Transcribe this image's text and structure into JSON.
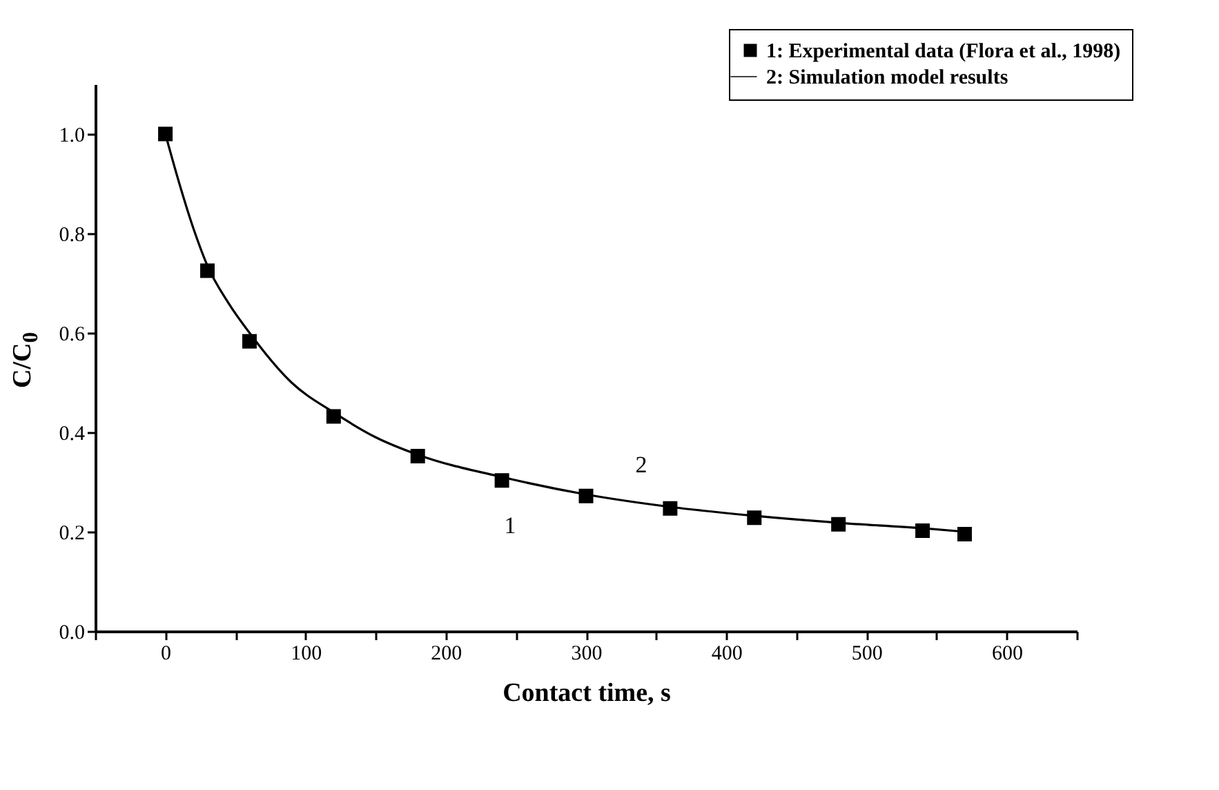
{
  "chart_data": {
    "type": "scatter",
    "xlabel": "Contact time, s",
    "ylabel": "C/C$_{0}$",
    "xlim": [
      -50,
      650
    ],
    "ylim": [
      0,
      1.1
    ],
    "xticks": [
      {
        "value": -50,
        "label": null
      },
      0,
      {
        "value": 50,
        "label": null
      },
      100,
      {
        "value": 150,
        "label": null
      },
      200,
      {
        "value": 250,
        "label": null
      },
      300,
      {
        "value": 350,
        "label": null
      },
      400,
      {
        "value": 450,
        "label": null
      },
      500,
      {
        "value": 550,
        "label": null
      },
      600,
      {
        "value": 650,
        "label": null
      }
    ],
    "yticks": [
      {
        "value": 0,
        "label": "0.0"
      },
      0.2,
      0.4,
      0.6,
      0.8,
      {
        "value": 1,
        "label": "1.0"
      }
    ],
    "legend": "top right",
    "grid": false,
    "series": [
      {
        "name": "1: Experimental data (Flora et al., 1998)",
        "type": "scatter",
        "marker": "square",
        "color": "#000000",
        "x": [
          0,
          30,
          60,
          120,
          180,
          240,
          300,
          360,
          420,
          480,
          540,
          570
        ],
        "values": [
          1.0,
          0.725,
          0.583,
          0.432,
          0.352,
          0.303,
          0.272,
          0.247,
          0.228,
          0.215,
          0.202,
          0.195
        ]
      },
      {
        "name": "2: Simulation model results",
        "type": "line",
        "marker": "none",
        "line_style": "solid",
        "color": "#000000",
        "x": [
          0,
          10,
          20,
          30,
          45,
          60,
          90,
          120,
          150,
          180,
          240,
          300,
          360,
          420,
          480,
          540,
          570
        ],
        "values": [
          1.0,
          0.9,
          0.81,
          0.735,
          0.66,
          0.6,
          0.5,
          0.44,
          0.39,
          0.355,
          0.31,
          0.275,
          0.25,
          0.232,
          0.218,
          0.207,
          0.2
        ]
      }
    ],
    "annotations": [
      "1",
      "2"
    ]
  }
}
